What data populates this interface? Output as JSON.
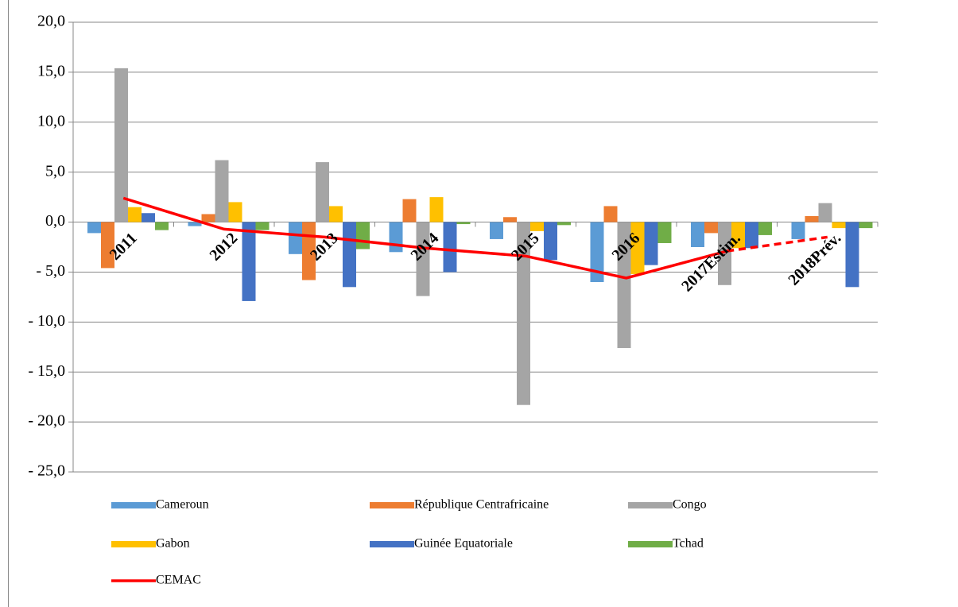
{
  "chart_data": {
    "type": "bar",
    "categories": [
      "2011",
      "2012",
      "2013",
      "2014",
      "2015",
      "2016",
      "2017Estim.",
      "2018Prév."
    ],
    "series": [
      {
        "name": "Cameroun",
        "color": "#5b9bd5",
        "values": [
          -1.1,
          -0.4,
          -3.2,
          -3.0,
          -1.7,
          -6.0,
          -2.5,
          -1.7
        ]
      },
      {
        "name": "République Centrafricaine",
        "color": "#ed7d31",
        "values": [
          -4.6,
          0.8,
          -5.8,
          2.3,
          0.5,
          1.6,
          -1.1,
          0.6
        ]
      },
      {
        "name": "Congo",
        "color": "#a5a5a5",
        "values": [
          15.4,
          6.2,
          6.0,
          -7.4,
          -18.3,
          -12.6,
          -6.3,
          1.9
        ]
      },
      {
        "name": "Gabon",
        "color": "#ffc000",
        "values": [
          1.5,
          2.0,
          1.6,
          2.5,
          -0.9,
          -5.2,
          -2.6,
          -0.6
        ]
      },
      {
        "name": "Guinée Equatoriale",
        "color": "#4472c4",
        "values": [
          0.9,
          -7.9,
          -6.5,
          -5.0,
          -3.8,
          -4.3,
          -2.6,
          -6.5
        ]
      },
      {
        "name": "Tchad",
        "color": "#70ad47",
        "values": [
          -0.8,
          -0.8,
          -2.7,
          -0.2,
          -0.3,
          -2.1,
          -1.3,
          -0.6
        ]
      },
      {
        "name": "CEMAC",
        "color": "#ff0000",
        "type": "line",
        "last_segment_style": "dashed",
        "values": [
          2.4,
          -0.7,
          -1.5,
          -2.6,
          -3.4,
          -5.6,
          -2.9,
          -1.5
        ]
      }
    ],
    "ylim": [
      -25,
      20
    ],
    "yticks": [
      {
        "value": 20,
        "label": "20,0"
      },
      {
        "value": 15,
        "label": "15,0"
      },
      {
        "value": 10,
        "label": "10,0"
      },
      {
        "value": 5,
        "label": "5,0"
      },
      {
        "value": 0,
        "label": "0,0"
      },
      {
        "value": -5,
        "label": "- 5,0"
      },
      {
        "value": -10,
        "label": "- 10,0"
      },
      {
        "value": -15,
        "label": "- 15,0"
      },
      {
        "value": -20,
        "label": "- 20,0"
      },
      {
        "value": -25,
        "label": "- 25,0"
      }
    ],
    "grid": true
  }
}
